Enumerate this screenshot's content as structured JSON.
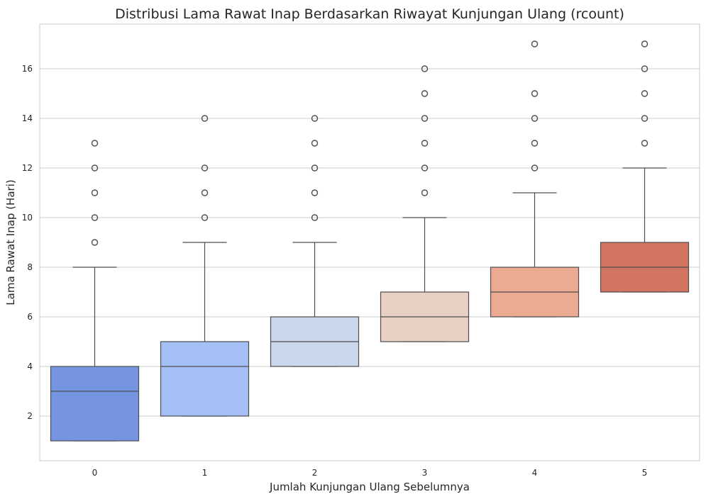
{
  "chart_data": {
    "type": "box",
    "title": "Distribusi Lama Rawat Inap Berdasarkan Riwayat Kunjungan Ulang (rcount)",
    "xlabel": "Jumlah Kunjungan Ulang Sebelumnya",
    "ylabel": "Lama Rawat Inap (Hari)",
    "categories": [
      "0",
      "1",
      "2",
      "3",
      "4",
      "5"
    ],
    "ylim": [
      0.2,
      17.8
    ],
    "yticks": [
      2,
      4,
      6,
      8,
      10,
      12,
      14,
      16
    ],
    "grid": "y",
    "boxes": [
      {
        "category": "0",
        "whisker_low": 1,
        "q1": 1,
        "median": 3,
        "q3": 4,
        "whisker_high": 8,
        "outliers": [
          9,
          10,
          11,
          12,
          13
        ],
        "color": "#7595e0"
      },
      {
        "category": "1",
        "whisker_low": 2,
        "q1": 2,
        "median": 4,
        "q3": 5,
        "whisker_high": 9,
        "outliers": [
          10,
          11,
          12,
          14
        ],
        "color": "#a4bef6"
      },
      {
        "category": "2",
        "whisker_low": 4,
        "q1": 4,
        "median": 5,
        "q3": 6,
        "whisker_high": 9,
        "outliers": [
          10,
          11,
          12,
          13,
          14
        ],
        "color": "#cad7ed"
      },
      {
        "category": "3",
        "whisker_low": 5,
        "q1": 5,
        "median": 6,
        "q3": 7,
        "whisker_high": 10,
        "outliers": [
          11,
          12,
          13,
          14,
          15,
          16
        ],
        "color": "#e9d0c5"
      },
      {
        "category": "4",
        "whisker_low": 6,
        "q1": 6,
        "median": 7,
        "q3": 8,
        "whisker_high": 11,
        "outliers": [
          12,
          13,
          14,
          15,
          17
        ],
        "color": "#eaab92"
      },
      {
        "category": "5",
        "whisker_low": 7,
        "q1": 7,
        "median": 8,
        "q3": 9,
        "whisker_high": 12,
        "outliers": [
          13,
          14,
          15,
          16,
          17
        ],
        "color": "#d27460"
      }
    ]
  }
}
